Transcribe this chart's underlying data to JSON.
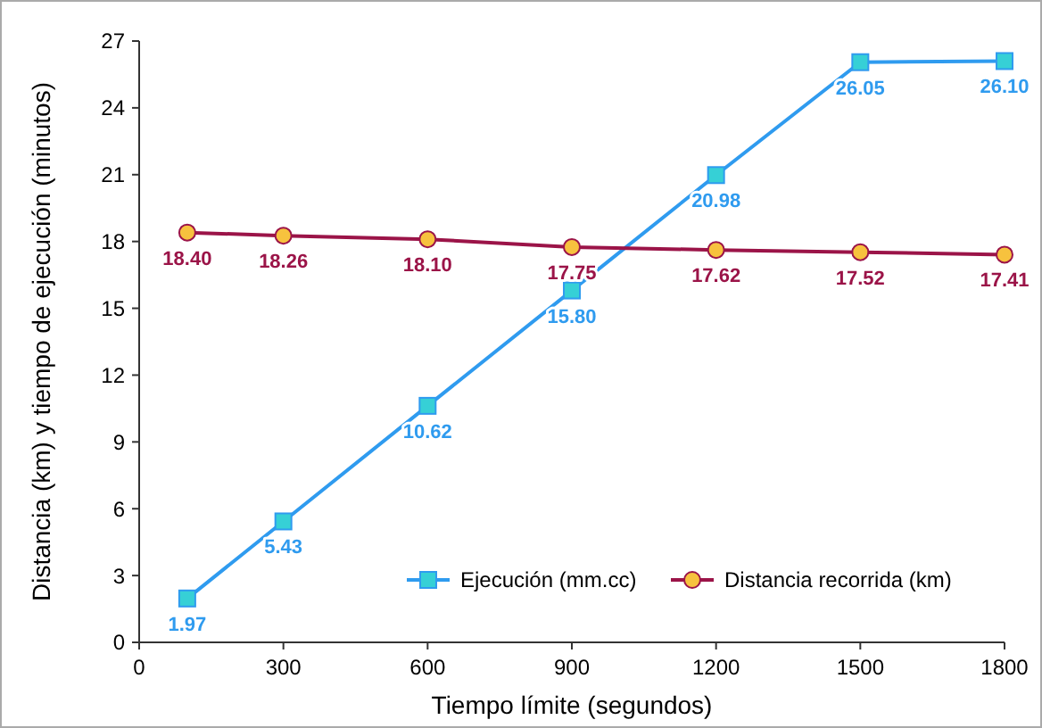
{
  "chart_data": {
    "type": "line",
    "xlabel": "Tiempo límite (segundos)",
    "ylabel": "Distancia (km) y tiempo de ejecución (minutos)",
    "x": [
      100,
      300,
      600,
      900,
      1200,
      1500,
      1800
    ],
    "xlim": [
      0,
      1800
    ],
    "xticks": [
      0,
      300,
      600,
      900,
      1200,
      1500,
      1800
    ],
    "ylim": [
      0,
      27
    ],
    "yticks": [
      0,
      3,
      6,
      9,
      12,
      15,
      18,
      21,
      24,
      27
    ],
    "grid": false,
    "legend": "bottom right",
    "series": [
      {
        "name": "Ejecución (mm.cc)",
        "color": "#2f9bef",
        "marker": "square",
        "values": [
          1.97,
          5.43,
          10.62,
          15.8,
          20.98,
          26.05,
          26.1
        ],
        "value_labels": [
          "1.97",
          "5.43",
          "10.62",
          "15.80",
          "20.98",
          "26.05",
          "26.10"
        ]
      },
      {
        "name": "Distancia recorrida (km)",
        "color": "#9b1448",
        "marker": "circle",
        "values": [
          18.4,
          18.26,
          18.1,
          17.75,
          17.62,
          17.52,
          17.41
        ],
        "value_labels": [
          "18.40",
          "18.26",
          "18.10",
          "17.75",
          "17.62",
          "17.52",
          "17.41"
        ]
      }
    ]
  }
}
